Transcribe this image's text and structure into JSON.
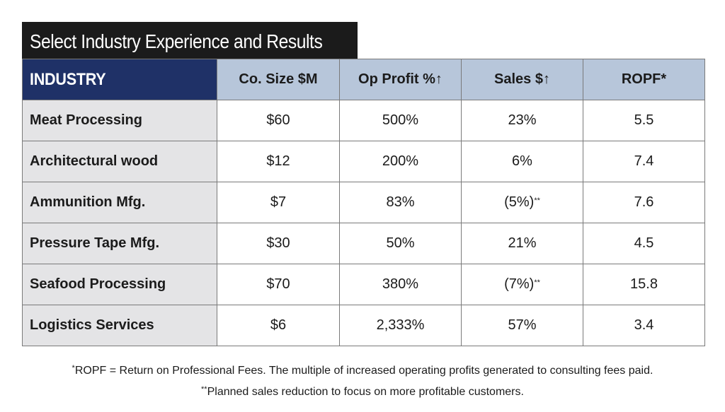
{
  "title": "Select Industry Experience and Results",
  "table": {
    "headers": [
      "INDUSTRY",
      "Co. Size $M",
      "Op Profit %↑",
      "Sales $↑",
      "ROPF*"
    ],
    "rows": [
      [
        "Meat Processing",
        "$60",
        "500%",
        "23%",
        "5.5"
      ],
      [
        "Architectural wood",
        "$12",
        "200%",
        "6%",
        "7.4"
      ],
      [
        "Ammunition Mfg.",
        "$7",
        "83%",
        "(5%)**",
        "7.6"
      ],
      [
        "Pressure Tape Mfg.",
        "$30",
        "50%",
        "21%",
        "4.5"
      ],
      [
        "Seafood Processing",
        "$70",
        "380%",
        "(7%)**",
        "15.8"
      ],
      [
        "Logistics Services",
        "$6",
        "2,333%",
        "57%",
        "3.4"
      ]
    ]
  },
  "footnotes": [
    {
      "mark": "*",
      "text": "ROPF = Return on Professional Fees. The multiple of increased operating profits generated to consulting fees paid."
    },
    {
      "mark": "**",
      "text": "Planned sales reduction to focus on more profitable customers."
    }
  ],
  "colors": {
    "title_bg": "#1b1b1b",
    "industry_header_bg": "#1f3167",
    "header_bg": "#b7c6da",
    "industry_col_bg": "#e4e4e6"
  }
}
